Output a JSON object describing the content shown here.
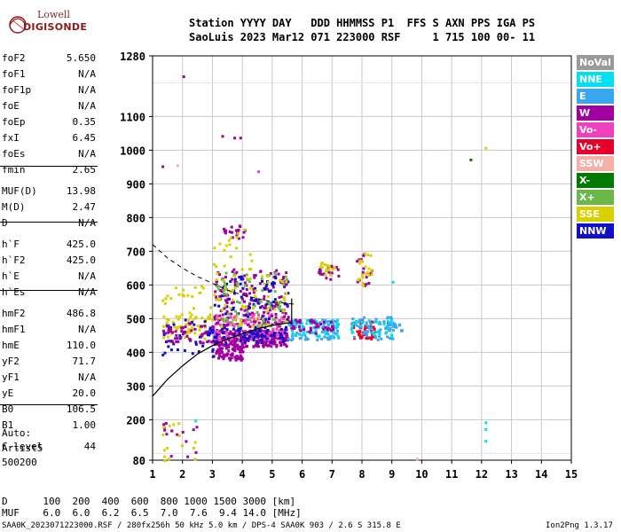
{
  "logo": {
    "top": "Lowell",
    "bottom": "DIGISONDE"
  },
  "header": {
    "line1": "Station YYYY DAY   DDD HHMMSS P1  FFS S AXN PPS IGA PS",
    "line2": "SaoLuis 2023 Mar12 071 223000 RSF     1 715 100 00- 11"
  },
  "params": [
    {
      "label": "foF2",
      "value": "5.650"
    },
    {
      "label": "foF1",
      "value": "N/A"
    },
    {
      "label": "foF1p",
      "value": "N/A"
    },
    {
      "label": "foE",
      "value": "N/A"
    },
    {
      "label": "foEp",
      "value": "0.35"
    },
    {
      "label": "fxI",
      "value": "6.45"
    },
    {
      "label": "foEs",
      "value": "N/A"
    },
    {
      "label": "fmin",
      "value": "2.65"
    },
    {
      "label": "MUF(D)",
      "value": "13.98"
    },
    {
      "label": "M(D)",
      "value": "2.47"
    },
    {
      "label": "D",
      "value": "N/A"
    },
    {
      "label": "h`F",
      "value": "425.0"
    },
    {
      "label": "h`F2",
      "value": "425.0"
    },
    {
      "label": "h`E",
      "value": "N/A"
    },
    {
      "label": "h`Es",
      "value": "N/A"
    },
    {
      "label": "hmF2",
      "value": "486.8"
    },
    {
      "label": "hmF1",
      "value": "N/A"
    },
    {
      "label": "hmE",
      "value": "110.0"
    },
    {
      "label": "yF2",
      "value": "71.7"
    },
    {
      "label": "yF1",
      "value": "N/A"
    },
    {
      "label": "yE",
      "value": "20.0"
    },
    {
      "label": "B0",
      "value": "106.5"
    },
    {
      "label": "B1",
      "value": "1.00"
    },
    {
      "label": "C-level",
      "value": "44"
    }
  ],
  "auto": {
    "line1": "Auto:",
    "line2": "Artist5",
    "line3": "500200"
  },
  "legend": [
    {
      "label": "NoVal",
      "color": "#9a9a9a"
    },
    {
      "label": "NNE",
      "color": "#00e0f0"
    },
    {
      "label": "E",
      "color": "#3aa8f0"
    },
    {
      "label": "W",
      "color": "#a000a0"
    },
    {
      "label": "Vo-",
      "color": "#f040c0"
    },
    {
      "label": "Vo+",
      "color": "#e8002a"
    },
    {
      "label": "SSW",
      "color": "#f4b0a8"
    },
    {
      "label": "X-",
      "color": "#007a00"
    },
    {
      "label": "X+",
      "color": "#6ab84a"
    },
    {
      "label": "SSE",
      "color": "#d8d000"
    },
    {
      "label": "NNW",
      "color": "#1010c8"
    }
  ],
  "footer": {
    "d_row": "D      100  200  400  600  800 1000 1500 3000 [km]",
    "muf_row": "MUF    6.0  6.0  6.2  6.5  7.0  7.6  9.4 14.0 [MHz]",
    "file_line": "SAA0K_2023071223000.RSF / 280fx256h 50 kHz 5.0 km / DPS-4 SAA0K 903 / 2.6 S 315.8 E",
    "version": "Ion2Png 1.3.17"
  },
  "chart_data": {
    "type": "scatter",
    "title": "",
    "xlabel": "",
    "ylabel": "",
    "xlim": [
      1,
      15
    ],
    "ylim": [
      80,
      1280
    ],
    "x_ticks": [
      1,
      2,
      3,
      4,
      5,
      6,
      7,
      8,
      9,
      10,
      11,
      12,
      13,
      14,
      15
    ],
    "y_ticks": [
      80,
      200,
      300,
      400,
      500,
      600,
      700,
      800,
      900,
      1000,
      1100,
      1280
    ],
    "grid": true,
    "legend_position": "right",
    "profile_line": {
      "x": [
        1.0,
        1.5,
        2.0,
        2.5,
        3.0,
        3.5,
        4.0,
        4.5,
        5.0,
        5.5,
        5.65
      ],
      "y": [
        270,
        320,
        360,
        395,
        420,
        440,
        455,
        470,
        480,
        487,
        487
      ]
    },
    "dashed_curve": {
      "x": [
        1.0,
        1.5,
        2.0,
        2.5,
        3.0,
        3.5,
        4.0,
        4.5,
        5.0,
        5.5,
        5.8
      ],
      "y": [
        720,
        680,
        650,
        625,
        605,
        585,
        570,
        560,
        550,
        545,
        543
      ]
    },
    "clusters": [
      {
        "series": "W",
        "x": [
          3.0,
          5.5
        ],
        "y": [
          420,
          470
        ],
        "n": 260
      },
      {
        "series": "W",
        "x": [
          3.0,
          4.0
        ],
        "y": [
          380,
          420
        ],
        "n": 70
      },
      {
        "series": "Vo-",
        "x": [
          3.0,
          5.5
        ],
        "y": [
          440,
          520
        ],
        "n": 120
      },
      {
        "series": "NNW",
        "x": [
          2.8,
          5.5
        ],
        "y": [
          430,
          480
        ],
        "n": 80
      },
      {
        "series": "W",
        "x": [
          3.0,
          5.5
        ],
        "y": [
          480,
          650
        ],
        "n": 160
      },
      {
        "series": "NNW",
        "x": [
          3.0,
          5.5
        ],
        "y": [
          500,
          640
        ],
        "n": 70
      },
      {
        "series": "X+",
        "x": [
          3.0,
          5.5
        ],
        "y": [
          480,
          640
        ],
        "n": 70
      },
      {
        "series": "SSE",
        "x": [
          3.0,
          5.5
        ],
        "y": [
          480,
          640
        ],
        "n": 60
      },
      {
        "series": "SSE",
        "x": [
          1.3,
          3.0
        ],
        "y": [
          440,
          520
        ],
        "n": 60
      },
      {
        "series": "NNW",
        "x": [
          1.3,
          3.0
        ],
        "y": [
          380,
          500
        ],
        "n": 40
      },
      {
        "series": "W",
        "x": [
          1.3,
          3.0
        ],
        "y": [
          430,
          490
        ],
        "n": 50
      },
      {
        "series": "SSE",
        "x": [
          1.3,
          3.0
        ],
        "y": [
          520,
          600
        ],
        "n": 20
      },
      {
        "series": "E",
        "x": [
          5.5,
          7.2
        ],
        "y": [
          440,
          500
        ],
        "n": 90
      },
      {
        "series": "NNE",
        "x": [
          5.5,
          7.2
        ],
        "y": [
          450,
          500
        ],
        "n": 40
      },
      {
        "series": "W",
        "x": [
          5.5,
          7.0
        ],
        "y": [
          460,
          500
        ],
        "n": 40
      },
      {
        "series": "Vo+",
        "x": [
          7.6,
          8.4
        ],
        "y": [
          440,
          500
        ],
        "n": 50
      },
      {
        "series": "E",
        "x": [
          7.6,
          9.0
        ],
        "y": [
          440,
          510
        ],
        "n": 60
      },
      {
        "series": "NNE",
        "x": [
          7.6,
          9.0
        ],
        "y": [
          450,
          500
        ],
        "n": 30
      },
      {
        "series": "E",
        "x": [
          8.7,
          9.3
        ],
        "y": [
          465,
          490
        ],
        "n": 20
      },
      {
        "series": "W",
        "x": [
          3.2,
          4.2
        ],
        "y": [
          740,
          780
        ],
        "n": 20
      },
      {
        "series": "SSE",
        "x": [
          3.0,
          4.3
        ],
        "y": [
          650,
          800
        ],
        "n": 20
      },
      {
        "series": "W",
        "x": [
          6.5,
          7.2
        ],
        "y": [
          620,
          660
        ],
        "n": 20
      },
      {
        "series": "SSE",
        "x": [
          6.5,
          7.2
        ],
        "y": [
          630,
          670
        ],
        "n": 15
      },
      {
        "series": "W",
        "x": [
          7.7,
          8.3
        ],
        "y": [
          600,
          700
        ],
        "n": 20
      },
      {
        "series": "SSE",
        "x": [
          7.7,
          8.3
        ],
        "y": [
          600,
          700
        ],
        "n": 20
      },
      {
        "series": "W",
        "x": [
          1.3,
          2.5
        ],
        "y": [
          80,
          200
        ],
        "n": 15
      },
      {
        "series": "SSE",
        "x": [
          1.3,
          2.5
        ],
        "y": [
          80,
          200
        ],
        "n": 15
      }
    ],
    "points": [
      {
        "series": "W",
        "x": 2.0,
        "y": 1222
      },
      {
        "series": "W",
        "x": 3.3,
        "y": 1045
      },
      {
        "series": "W",
        "x": 3.7,
        "y": 1040
      },
      {
        "series": "W",
        "x": 3.9,
        "y": 1040
      },
      {
        "series": "W",
        "x": 1.3,
        "y": 955
      },
      {
        "series": "SSW",
        "x": 1.8,
        "y": 958
      },
      {
        "series": "Vo-",
        "x": 4.5,
        "y": 940
      },
      {
        "series": "X-",
        "x": 11.6,
        "y": 975
      },
      {
        "series": "SSE",
        "x": 12.1,
        "y": 1010
      },
      {
        "series": "NNE",
        "x": 12.1,
        "y": 195
      },
      {
        "series": "NNE",
        "x": 12.1,
        "y": 175
      },
      {
        "series": "NNE",
        "x": 12.1,
        "y": 140
      },
      {
        "series": "SSW",
        "x": 9.8,
        "y": 87
      },
      {
        "series": "NNE",
        "x": 9.0,
        "y": 612
      },
      {
        "series": "NNE",
        "x": 2.4,
        "y": 200
      }
    ]
  }
}
